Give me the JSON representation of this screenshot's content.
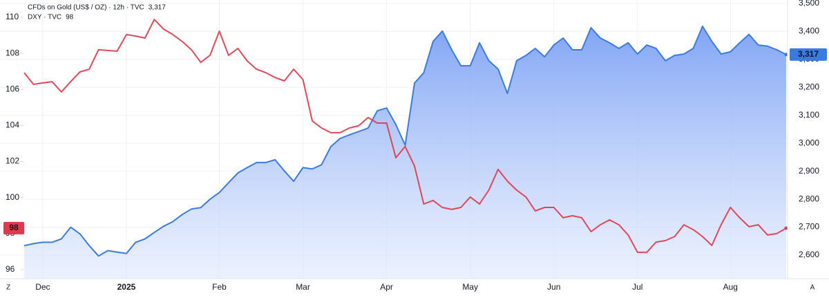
{
  "chart_data": {
    "type": "line",
    "categories": [
      null,
      null,
      "Dec",
      null,
      null,
      null,
      null,
      null,
      null,
      null,
      null,
      "2025",
      null,
      null,
      null,
      null,
      null,
      null,
      null,
      null,
      null,
      "Feb",
      null,
      null,
      null,
      null,
      null,
      null,
      null,
      null,
      "Mar",
      null,
      null,
      null,
      null,
      null,
      null,
      null,
      null,
      "Apr",
      null,
      null,
      null,
      null,
      null,
      null,
      null,
      null,
      "May",
      null,
      null,
      null,
      null,
      null,
      null,
      null,
      null,
      "Jun",
      null,
      null,
      null,
      null,
      null,
      null,
      null,
      null,
      "Jul",
      null,
      null,
      null,
      null,
      null,
      null,
      null,
      null,
      null,
      "Aug",
      null,
      null,
      null,
      null,
      null,
      null
    ],
    "series": [
      {
        "name": "CFDs on Gold (US$ / OZ) · 12h · TVC",
        "color": "#3a7be0",
        "axis": "y2",
        "last_label": "3,317",
        "values": [
          2634,
          2641,
          2646,
          2646,
          2658,
          2700,
          2676,
          2634,
          2597,
          2616,
          2611,
          2606,
          2646,
          2658,
          2681,
          2703,
          2720,
          2745,
          2765,
          2770,
          2800,
          2824,
          2859,
          2894,
          2913,
          2931,
          2931,
          2941,
          2901,
          2864,
          2913,
          2908,
          2923,
          2988,
          3017,
          3030,
          3042,
          3054,
          3116,
          3126,
          3067,
          2993,
          3215,
          3252,
          3364,
          3401,
          3334,
          3277,
          3277,
          3359,
          3295,
          3265,
          3178,
          3295,
          3314,
          3339,
          3309,
          3351,
          3376,
          3334,
          3334,
          3413,
          3376,
          3359,
          3339,
          3359,
          3319,
          3351,
          3339,
          3295,
          3314,
          3319,
          3339,
          3418,
          3364,
          3319,
          3327,
          3359,
          3389,
          3351,
          3347,
          3334,
          3317
        ]
      },
      {
        "name": "DXY · TVC",
        "color": "#e0384c",
        "last_label": "98",
        "values": [
          106.93,
          106.28,
          106.36,
          106.43,
          105.86,
          106.43,
          106.97,
          107.12,
          108.2,
          108.16,
          108.12,
          109.04,
          108.96,
          108.85,
          109.88,
          109.35,
          109.04,
          108.66,
          108.2,
          107.5,
          107.89,
          109.23,
          107.89,
          108.27,
          107.58,
          107.12,
          106.93,
          106.66,
          106.47,
          107.12,
          106.55,
          104.25,
          103.86,
          103.6,
          103.6,
          103.86,
          103.98,
          104.44,
          104.13,
          104.13,
          102.21,
          102.83,
          101.75,
          99.64,
          99.84,
          99.45,
          99.34,
          99.45,
          100.03,
          99.64,
          100.41,
          101.56,
          100.91,
          100.41,
          100.03,
          99.26,
          99.45,
          99.45,
          98.88,
          98.99,
          98.88,
          98.11,
          98.49,
          98.76,
          98.49,
          97.92,
          96.96,
          96.96,
          97.53,
          97.61,
          97.84,
          98.49,
          98.22,
          97.84,
          97.34,
          98.49,
          99.45,
          98.88,
          98.38,
          98.49,
          97.92,
          98.0,
          98.3
        ]
      }
    ],
    "ylim": [
      95.5,
      110.96
    ],
    "yticks": [
      96,
      98,
      100,
      102,
      104,
      106,
      108,
      110
    ],
    "y2lim": [
      2516,
      3512
    ],
    "y2ticks": [
      {
        "value": 2600,
        "label": "2,600"
      },
      {
        "value": 2700,
        "label": "2,700"
      },
      {
        "value": 2800,
        "label": "2,800"
      },
      {
        "value": 2900,
        "label": "2,900"
      },
      {
        "value": 3000,
        "label": "3,000"
      },
      {
        "value": 3100,
        "label": "3,100"
      },
      {
        "value": 3200,
        "label": "3,200"
      },
      {
        "value": 3300,
        "label": "3,300"
      },
      {
        "value": 3400,
        "label": "3,400"
      },
      {
        "value": 3500,
        "label": "3,500"
      }
    ],
    "grid": true,
    "scale_buttons": [
      "Z",
      "A"
    ]
  }
}
